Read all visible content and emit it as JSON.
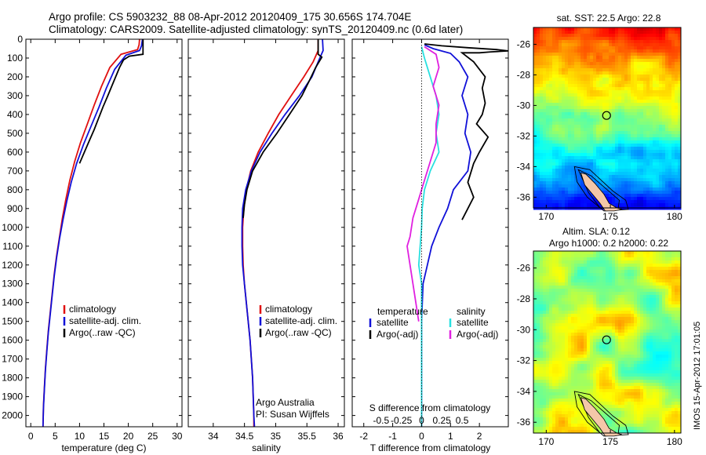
{
  "header": {
    "line1": "Argo profile: CS 5903232_88 08-Apr-2012 20120409_175 30.656S 174.704E",
    "line2": "Climatology: CARS2009. Satellite-adjusted climatology: synTS_20120409.nc (0.6d later)"
  },
  "colors": {
    "climatology": "#e01010",
    "satellite": "#1010d8",
    "argo": "#000000",
    "salinity_satellite": "#28e0e0",
    "salinity_argo": "#e020e0"
  },
  "chart_data": [
    {
      "type": "line",
      "panel": "temperature",
      "xlabel": "temperature (deg C)",
      "ylabel": "",
      "xlim": [
        -1,
        31
      ],
      "ylim": [
        2060,
        0
      ],
      "xticks": [
        "0",
        "5",
        "10",
        "15",
        "20",
        "25",
        "30"
      ],
      "yticks": [
        "0",
        "100",
        "200",
        "300",
        "400",
        "500",
        "600",
        "700",
        "800",
        "900",
        "1000",
        "1100",
        "1200",
        "1300",
        "1400",
        "1500",
        "1600",
        "1700",
        "1800",
        "1900",
        "2000"
      ],
      "legend": [
        "climatology",
        "satellite-adj. clim.",
        "Argo(..raw -QC)"
      ],
      "legend_position": "lower-center",
      "series": [
        {
          "name": "climatology",
          "color_key": "climatology",
          "points": [
            [
              22.3,
              0
            ],
            [
              22.2,
              30
            ],
            [
              21.9,
              55
            ],
            [
              18.5,
              80
            ],
            [
              16.2,
              150
            ],
            [
              14.5,
              250
            ],
            [
              13.0,
              350
            ],
            [
              11.6,
              450
            ],
            [
              10.2,
              550
            ],
            [
              9.0,
              650
            ],
            [
              8.0,
              750
            ],
            [
              7.2,
              850
            ],
            [
              6.5,
              950
            ],
            [
              5.9,
              1050
            ],
            [
              5.3,
              1150
            ],
            [
              4.8,
              1250
            ],
            [
              4.4,
              1350
            ],
            [
              4.0,
              1450
            ],
            [
              3.6,
              1550
            ],
            [
              3.3,
              1650
            ],
            [
              3.0,
              1750
            ],
            [
              2.8,
              1850
            ],
            [
              2.6,
              1950
            ],
            [
              2.5,
              2060
            ]
          ]
        },
        {
          "name": "satellite-adj. clim.",
          "color_key": "satellite",
          "points": [
            [
              22.9,
              0
            ],
            [
              22.7,
              35
            ],
            [
              22.3,
              60
            ],
            [
              19.5,
              85
            ],
            [
              17.2,
              160
            ],
            [
              15.5,
              260
            ],
            [
              14.0,
              360
            ],
            [
              12.4,
              460
            ],
            [
              10.8,
              560
            ],
            [
              9.4,
              660
            ],
            [
              8.3,
              760
            ],
            [
              7.4,
              860
            ],
            [
              6.6,
              960
            ],
            [
              5.9,
              1060
            ],
            [
              5.3,
              1160
            ],
            [
              4.8,
              1260
            ],
            [
              4.4,
              1360
            ],
            [
              4.0,
              1460
            ],
            [
              3.6,
              1560
            ],
            [
              3.3,
              1660
            ],
            [
              3.0,
              1760
            ],
            [
              2.8,
              1860
            ],
            [
              2.6,
              1960
            ],
            [
              2.5,
              2060
            ]
          ]
        },
        {
          "name": "Argo(..raw -QC)",
          "color_key": "argo",
          "points": [
            [
              23.0,
              0
            ],
            [
              23.0,
              80
            ],
            [
              20.2,
              90
            ],
            [
              19.0,
              110
            ],
            [
              18.2,
              150
            ],
            [
              17.4,
              200
            ],
            [
              16.6,
              250
            ],
            [
              15.8,
              300
            ],
            [
              14.8,
              360
            ],
            [
              13.9,
              420
            ],
            [
              13.0,
              480
            ],
            [
              12.0,
              540
            ],
            [
              11.0,
              600
            ],
            [
              10.0,
              660
            ]
          ]
        }
      ]
    },
    {
      "type": "line",
      "panel": "salinity",
      "xlabel": "salinity",
      "xlim": [
        33.6,
        36.1
      ],
      "ylim": [
        2060,
        0
      ],
      "xticks": [
        "34",
        "34.5",
        "35",
        "35.5",
        "36"
      ],
      "legend": [
        "climatology",
        "satellite-adj. clim.",
        "Argo(..raw -QC)"
      ],
      "legend_position": "lower-center",
      "annotation": [
        "Argo Australia",
        "PI: Susan Wijffels"
      ],
      "series": [
        {
          "name": "climatology",
          "color_key": "climatology",
          "points": [
            [
              35.68,
              0
            ],
            [
              35.68,
              60
            ],
            [
              35.6,
              120
            ],
            [
              35.45,
              200
            ],
            [
              35.25,
              300
            ],
            [
              35.05,
              400
            ],
            [
              34.88,
              500
            ],
            [
              34.72,
              600
            ],
            [
              34.6,
              700
            ],
            [
              34.53,
              800
            ],
            [
              34.49,
              900
            ],
            [
              34.47,
              1000
            ],
            [
              34.47,
              1100
            ],
            [
              34.48,
              1200
            ],
            [
              34.5,
              1300
            ],
            [
              34.53,
              1400
            ],
            [
              34.56,
              1500
            ],
            [
              34.59,
              1600
            ],
            [
              34.61,
              1700
            ],
            [
              34.63,
              1800
            ],
            [
              34.64,
              1900
            ],
            [
              34.65,
              2000
            ],
            [
              34.65,
              2060
            ]
          ]
        },
        {
          "name": "satellite-adj. clim.",
          "color_key": "satellite",
          "points": [
            [
              35.75,
              0
            ],
            [
              35.76,
              60
            ],
            [
              35.68,
              120
            ],
            [
              35.58,
              200
            ],
            [
              35.38,
              300
            ],
            [
              35.15,
              400
            ],
            [
              34.94,
              500
            ],
            [
              34.75,
              600
            ],
            [
              34.61,
              700
            ],
            [
              34.52,
              800
            ],
            [
              34.47,
              900
            ],
            [
              34.46,
              1000
            ],
            [
              34.46,
              1100
            ],
            [
              34.47,
              1200
            ],
            [
              34.5,
              1300
            ],
            [
              34.53,
              1400
            ],
            [
              34.56,
              1500
            ],
            [
              34.59,
              1600
            ],
            [
              34.61,
              1700
            ],
            [
              34.63,
              1800
            ],
            [
              34.64,
              1900
            ],
            [
              34.65,
              2000
            ],
            [
              34.66,
              2060
            ]
          ]
        },
        {
          "name": "Argo(..raw -QC)",
          "color_key": "argo",
          "points": [
            [
              35.68,
              0
            ],
            [
              35.68,
              80
            ],
            [
              35.74,
              95
            ],
            [
              35.64,
              150
            ],
            [
              35.54,
              220
            ],
            [
              35.42,
              300
            ],
            [
              35.22,
              400
            ],
            [
              35.02,
              500
            ],
            [
              34.8,
              600
            ],
            [
              34.63,
              700
            ],
            [
              34.54,
              800
            ],
            [
              34.5,
              880
            ],
            [
              34.48,
              950
            ]
          ]
        }
      ]
    },
    {
      "type": "line",
      "panel": "difference",
      "xlabel": "T difference from climatology",
      "xlabel_top": "S difference from climatology",
      "xlim": [
        -2.4,
        3.0
      ],
      "ylim": [
        2060,
        0
      ],
      "xticks": [
        "-2",
        "-1",
        "0",
        "1",
        "2"
      ],
      "xticks_top": [
        "-0.5",
        "-0.25",
        "0",
        "0.25",
        "0.5"
      ],
      "legend_temperature": {
        "title": "temperature",
        "items": [
          "satellite",
          "Argo(-adj)"
        ]
      },
      "legend_salinity": {
        "title": "salinity",
        "items": [
          "satellite",
          "Argo(-adj)"
        ]
      },
      "series": [
        {
          "name": "temperature satellite",
          "color_key": "satellite",
          "points": [
            [
              0.1,
              30
            ],
            [
              0.4,
              50
            ],
            [
              1.0,
              75
            ],
            [
              1.3,
              120
            ],
            [
              1.6,
              200
            ],
            [
              1.4,
              300
            ],
            [
              1.6,
              400
            ],
            [
              1.5,
              500
            ],
            [
              1.7,
              600
            ],
            [
              1.6,
              700
            ],
            [
              1.1,
              800
            ],
            [
              0.9,
              900
            ],
            [
              0.6,
              1000
            ],
            [
              0.35,
              1100
            ],
            [
              0.2,
              1200
            ],
            [
              0.05,
              1300
            ],
            [
              0,
              1500
            ],
            [
              0,
              2060
            ]
          ]
        },
        {
          "name": "temperature Argo(-adj)",
          "color_key": "argo",
          "points": [
            [
              0.1,
              25
            ],
            [
              0.7,
              35
            ],
            [
              1.6,
              45
            ],
            [
              2.6,
              55
            ],
            [
              3.0,
              62
            ],
            [
              2.4,
              67
            ],
            [
              2.0,
              72
            ],
            [
              1.4,
              72
            ],
            [
              1.8,
              120
            ],
            [
              2.2,
              200
            ],
            [
              2.1,
              260
            ],
            [
              2.2,
              340
            ],
            [
              2.1,
              400
            ],
            [
              1.9,
              450
            ],
            [
              2.3,
              520
            ],
            [
              2.0,
              600
            ],
            [
              1.8,
              660
            ],
            [
              1.6,
              760
            ],
            [
              1.8,
              840
            ],
            [
              1.6,
              900
            ],
            [
              1.4,
              960
            ]
          ]
        },
        {
          "name": "salinity satellite",
          "color_key": "salinity_satellite",
          "points": [
            [
              0.0,
              40
            ],
            [
              0.1,
              100
            ],
            [
              0.3,
              200
            ],
            [
              0.5,
              300
            ],
            [
              0.6,
              400
            ],
            [
              0.5,
              500
            ],
            [
              0.6,
              600
            ],
            [
              0.3,
              700
            ],
            [
              0.1,
              800
            ],
            [
              0.02,
              900
            ],
            [
              0.0,
              1000
            ],
            [
              -0.05,
              1100
            ],
            [
              -0.1,
              1200
            ],
            [
              0.0,
              1300
            ],
            [
              0,
              2060
            ]
          ]
        },
        {
          "name": "salinity Argo(-adj)",
          "color_key": "salinity_argo",
          "points": [
            [
              0.1,
              40
            ],
            [
              0.5,
              80
            ],
            [
              0.6,
              150
            ],
            [
              0.4,
              250
            ],
            [
              0.6,
              350
            ],
            [
              0.5,
              450
            ],
            [
              0.5,
              550
            ],
            [
              0.3,
              650
            ],
            [
              0.1,
              750
            ],
            [
              -0.1,
              850
            ],
            [
              -0.3,
              950
            ],
            [
              -0.4,
              1050
            ],
            [
              -0.5,
              1100
            ],
            [
              -0.4,
              1200
            ],
            [
              -0.3,
              1300
            ],
            [
              -0.2,
              1400
            ],
            [
              -0.1,
              1500
            ]
          ]
        }
      ]
    },
    {
      "type": "heatmap",
      "panel": "sst_map",
      "title": "sat. SST: 22.5 Argo: 22.8",
      "xticks": [
        "170",
        "175",
        "180"
      ],
      "yticks": [
        "-26",
        "-28",
        "-30",
        "-32",
        "-34",
        "-36"
      ],
      "xlim": [
        169,
        180.5
      ],
      "ylim": [
        -36.7,
        -24.9
      ],
      "marker": {
        "lon": 174.704,
        "lat": -30.656
      }
    },
    {
      "type": "heatmap",
      "panel": "sla_map",
      "title": "Altim. SLA: 0.12",
      "subtitle": "Argo h1000: 0.2 h2000: 0.22",
      "xticks": [
        "170",
        "175",
        "180"
      ],
      "yticks": [
        "-26",
        "-28",
        "-30",
        "-32",
        "-34",
        "-36"
      ],
      "xlim": [
        169,
        180.5
      ],
      "ylim": [
        -36.7,
        -24.9
      ],
      "marker": {
        "lon": 174.704,
        "lat": -30.656
      }
    }
  ],
  "watermark": "IMOS 15-Apr-2012 17:01:05"
}
